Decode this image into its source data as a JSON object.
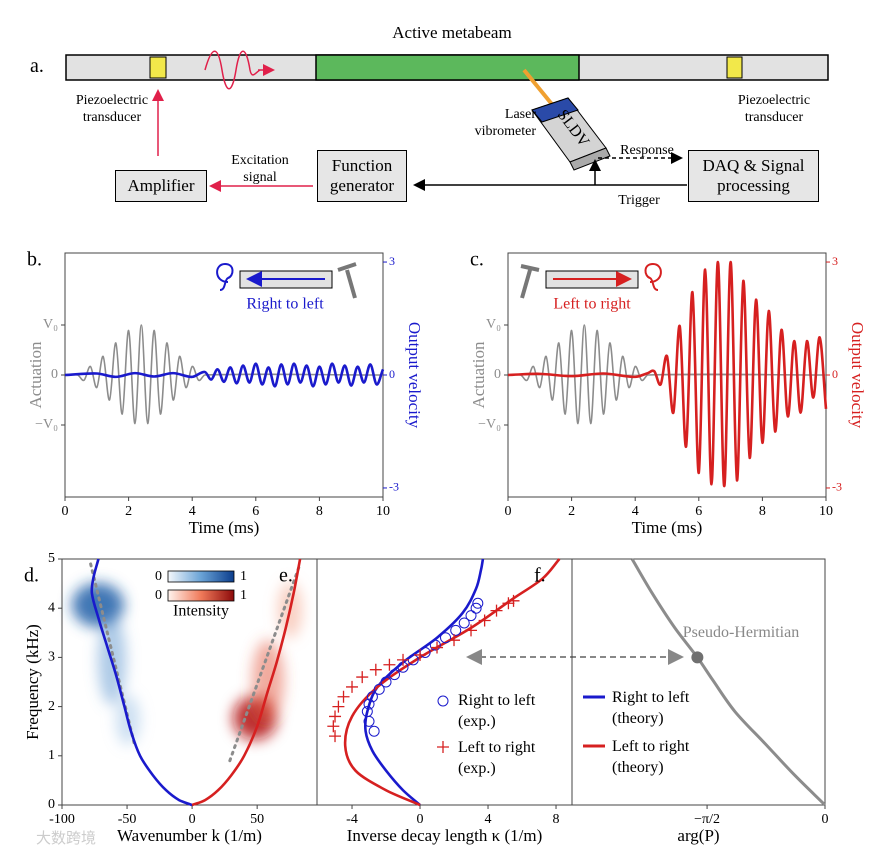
{
  "diagram": {
    "panel": "a.",
    "title": "Active metabeam",
    "left_transducer": "Piezoelectric transducer",
    "right_transducer": "Piezoelectric transducer",
    "vibrometer": "Laser vibrometer",
    "sldv": "SLDV",
    "response": "Response",
    "daq": "DAQ & Signal processing",
    "function_generator": "Function generator",
    "amplifier": "Amplifier",
    "excitation": "Excitation signal",
    "trigger": "Trigger"
  },
  "watermark": "大数跨境",
  "chart_data": [
    {
      "type": "line",
      "panel": "b.",
      "xlabel": "Time (ms)",
      "ylabel": "Actuation",
      "y2label": "Output velocity",
      "annotation": "Right to left",
      "xlim": [
        0,
        10
      ],
      "xticks": [
        0,
        2,
        4,
        6,
        8,
        10
      ],
      "ylim": [
        -2.44,
        2.44
      ],
      "yticks": [
        {
          "value": -1,
          "label": "−V₀"
        },
        0,
        {
          "value": 1,
          "label": "V₀"
        }
      ],
      "y2lim": [
        -3.24,
        3.24
      ],
      "y2ticks": [
        -3,
        0,
        3
      ],
      "y2color": "#1a1acc",
      "series": [
        {
          "color": "#8c8c8c",
          "linewidth": 1.6,
          "x": [
            0,
            0.4,
            0.6,
            0.8,
            1.0,
            1.2,
            1.4,
            1.6,
            1.8,
            2.0,
            2.2,
            2.4,
            2.6,
            2.8,
            3.0,
            3.2,
            3.4,
            3.6,
            3.8,
            4.0,
            4.2,
            4.4,
            10
          ],
          "values": [
            0,
            0,
            -0.105,
            0.17,
            -0.25,
            0.37,
            -0.5,
            0.64,
            -0.78,
            0.89,
            -0.97,
            1,
            -0.97,
            0.89,
            -0.78,
            0.64,
            -0.5,
            0.37,
            -0.25,
            0.17,
            -0.105,
            0,
            0
          ]
        },
        {
          "color": "#1a1acc",
          "linewidth": 2.6,
          "axis": "y2",
          "x": [
            0,
            1,
            1.6,
            2.2,
            2.8,
            3.4,
            4.0,
            4.4,
            4.6,
            4.8,
            5.0,
            5.2,
            5.4,
            5.6,
            5.8,
            6.0,
            6.2,
            6.4,
            6.6,
            6.8,
            7.0,
            7.2,
            7.4,
            7.6,
            7.8,
            8.0,
            8.2,
            8.4,
            8.6,
            8.8,
            9.0,
            9.2,
            9.4,
            9.6,
            9.8,
            10
          ],
          "values": [
            0,
            0.04,
            -0.05,
            0.05,
            -0.04,
            0.05,
            -0.05,
            0.08,
            -0.12,
            0.15,
            -0.18,
            0.2,
            -0.22,
            0.25,
            -0.2,
            0.3,
            -0.25,
            0.2,
            -0.3,
            0.28,
            -0.25,
            0.3,
            -0.2,
            0.25,
            -0.3,
            0.22,
            -0.25,
            0.3,
            -0.2,
            0.25,
            -0.28,
            0.22,
            -0.2,
            0.28,
            -0.25,
            0.15
          ]
        }
      ]
    },
    {
      "type": "line",
      "panel": "c.",
      "xlabel": "Time (ms)",
      "ylabel": "Actuation",
      "y2label": "Output velocity",
      "annotation": "Left to right",
      "zeroline": true,
      "xlim": [
        0,
        10
      ],
      "xticks": [
        0,
        2,
        4,
        6,
        8,
        10
      ],
      "ylim": [
        -2.44,
        2.44
      ],
      "yticks": [
        {
          "value": -1,
          "label": "−V₀"
        },
        0,
        {
          "value": 1,
          "label": "V₀"
        }
      ],
      "y2lim": [
        -3.24,
        3.24
      ],
      "y2ticks": [
        -3,
        0,
        3
      ],
      "y2color": "#d62020",
      "series": [
        {
          "color": "#8c8c8c",
          "linewidth": 1.6,
          "x": [
            0,
            0.4,
            0.6,
            0.8,
            1.0,
            1.2,
            1.4,
            1.6,
            1.8,
            2.0,
            2.2,
            2.4,
            2.6,
            2.8,
            3.0,
            3.2,
            3.4,
            3.6,
            3.8,
            4.0,
            4.2,
            4.4,
            10
          ],
          "values": [
            0,
            0,
            -0.105,
            0.17,
            -0.25,
            0.37,
            -0.5,
            0.64,
            -0.78,
            0.89,
            -0.97,
            1,
            -0.97,
            0.89,
            -0.78,
            0.64,
            -0.5,
            0.37,
            -0.25,
            0.17,
            -0.105,
            0,
            0
          ]
        },
        {
          "color": "#d62020",
          "linewidth": 2.6,
          "axis": "y2",
          "x": [
            0,
            1,
            2,
            3,
            4,
            4.4,
            4.6,
            4.8,
            5.0,
            5.2,
            5.4,
            5.6,
            5.8,
            6.0,
            6.2,
            6.4,
            6.6,
            6.8,
            7.0,
            7.2,
            7.4,
            7.6,
            7.8,
            8.0,
            8.2,
            8.4,
            8.6,
            8.8,
            9.0,
            9.2,
            9.4,
            9.6,
            9.8,
            10
          ],
          "values": [
            0,
            0.03,
            -0.03,
            0.04,
            -0.05,
            0.05,
            0.1,
            -0.25,
            0.5,
            -1.0,
            1.3,
            -1.9,
            2.2,
            -2.6,
            2.8,
            -2.9,
            3.0,
            -2.95,
            3.0,
            -2.8,
            2.5,
            -2.2,
            2.0,
            -1.8,
            1.7,
            -1.5,
            1.2,
            -1.1,
            0.9,
            -1.0,
            0.9,
            -0.6,
            1.0,
            -0.9
          ]
        }
      ]
    },
    {
      "type": "line",
      "panel": "d.",
      "xlabel": "Wavenumber k (1/m)",
      "ylabel": "Frequency (kHz)",
      "xlim": [
        -100,
        96
      ],
      "xticks": [
        -100,
        -50,
        0,
        50
      ],
      "ylim": [
        0,
        5
      ],
      "yticks": [
        0,
        1,
        2,
        3,
        4,
        5
      ],
      "colorbar": {
        "label": "Intensity",
        "ticks": [
          0,
          1
        ]
      },
      "series": [
        {
          "color": "#8c8c8c",
          "linewidth": 3,
          "dash": true,
          "x": [
            -78,
            -44
          ],
          "values": [
            4.9,
            1.2
          ]
        },
        {
          "color": "#8c8c8c",
          "linewidth": 3,
          "dash": true,
          "x": [
            29,
            83
          ],
          "values": [
            0.9,
            4.9
          ]
        },
        {
          "color": "#1a1acc",
          "linewidth": 2.6,
          "x": [
            0,
            -10,
            -20,
            -30,
            -40,
            -47,
            -52,
            -58,
            -65,
            -72,
            -77,
            -76,
            -72
          ],
          "values": [
            0,
            0.1,
            0.3,
            0.6,
            1.0,
            1.5,
            2.0,
            2.6,
            3.2,
            3.8,
            4.3,
            4.6,
            5.0
          ]
        },
        {
          "color": "#d62020",
          "linewidth": 2.6,
          "x": [
            0,
            10,
            20,
            30,
            40,
            50,
            58,
            65,
            72,
            78,
            83
          ],
          "values": [
            0,
            0.1,
            0.3,
            0.6,
            1.0,
            1.6,
            2.3,
            2.9,
            3.6,
            4.3,
            5.0
          ]
        }
      ]
    },
    {
      "type": "line",
      "panel": "e.",
      "xlabel": "Inverse decay length κ (1/m)",
      "xlim": [
        -6.06,
        8.94
      ],
      "xticks": [
        -4,
        0,
        4,
        8
      ],
      "ylim": [
        0,
        5
      ],
      "series": [
        {
          "name": "Right to left (theory)",
          "color": "#1a1acc",
          "linewidth": 2.6,
          "x": [
            0,
            -1,
            -2,
            -2.8,
            -3.2,
            -3.1,
            -2.5,
            -1,
            1,
            2.5,
            3.3,
            3.6,
            3.7
          ],
          "values": [
            0,
            0.3,
            0.7,
            1.1,
            1.5,
            1.9,
            2.4,
            2.9,
            3.4,
            3.9,
            4.4,
            4.8,
            5.0
          ]
        },
        {
          "name": "Left to right (theory)",
          "color": "#d62020",
          "linewidth": 2.6,
          "x": [
            0,
            -2,
            -3.8,
            -4.4,
            -4,
            -2.5,
            0,
            3,
            5.5,
            7.2,
            8.2
          ],
          "values": [
            0,
            0.3,
            0.7,
            1.2,
            1.8,
            2.4,
            3.0,
            3.6,
            4.2,
            4.6,
            5.0
          ]
        },
        {
          "name": "Right to left (exp.)",
          "color": "#1a1acc",
          "marker": "o",
          "x": [
            -2.7,
            -3.0,
            -3.1,
            -3.0,
            -2.8,
            -2.4,
            -2,
            -1.5,
            -1,
            -0.4,
            0.3,
            0.9,
            1.5,
            2.1,
            2.6,
            3,
            3.3,
            3.4
          ],
          "values": [
            1.5,
            1.7,
            1.9,
            2.05,
            2.2,
            2.35,
            2.5,
            2.65,
            2.8,
            2.95,
            3.1,
            3.25,
            3.4,
            3.55,
            3.7,
            3.85,
            4.0,
            4.1
          ]
        },
        {
          "name": "Left to right (exp.)",
          "color": "#d62020",
          "marker": "+",
          "x": [
            -5,
            -5.1,
            -5.0,
            -4.8,
            -4.5,
            -4,
            -3.4,
            -2.6,
            -1.8,
            -1,
            0,
            1,
            2,
            3,
            3.8,
            4.5,
            5.2,
            5.5
          ],
          "values": [
            1.4,
            1.6,
            1.8,
            2.0,
            2.2,
            2.4,
            2.6,
            2.75,
            2.85,
            2.95,
            3.05,
            3.2,
            3.35,
            3.55,
            3.75,
            3.95,
            4.1,
            4.15
          ]
        }
      ]
    },
    {
      "type": "line",
      "panel": "f.",
      "xlabel": "arg(P)",
      "annotation": "Pseudo-Hermitian",
      "xlim": [
        -3.37,
        0
      ],
      "xticks": [
        {
          "value": -1.5708,
          "label": "−π/2"
        },
        0
      ],
      "ylim": [
        0,
        5
      ],
      "series": [
        {
          "color": "#8c8c8c",
          "linewidth": 3,
          "x": [
            0,
            -0.4,
            -0.8,
            -1.2,
            -1.5,
            -1.7,
            -2.0,
            -2.3,
            -2.57
          ],
          "values": [
            0,
            0.6,
            1.25,
            1.9,
            2.55,
            3.0,
            3.6,
            4.3,
            5.0
          ]
        },
        {
          "color": "#707070",
          "marker": "dot",
          "x": [
            -1.7
          ],
          "values": [
            3.0
          ]
        }
      ]
    }
  ]
}
